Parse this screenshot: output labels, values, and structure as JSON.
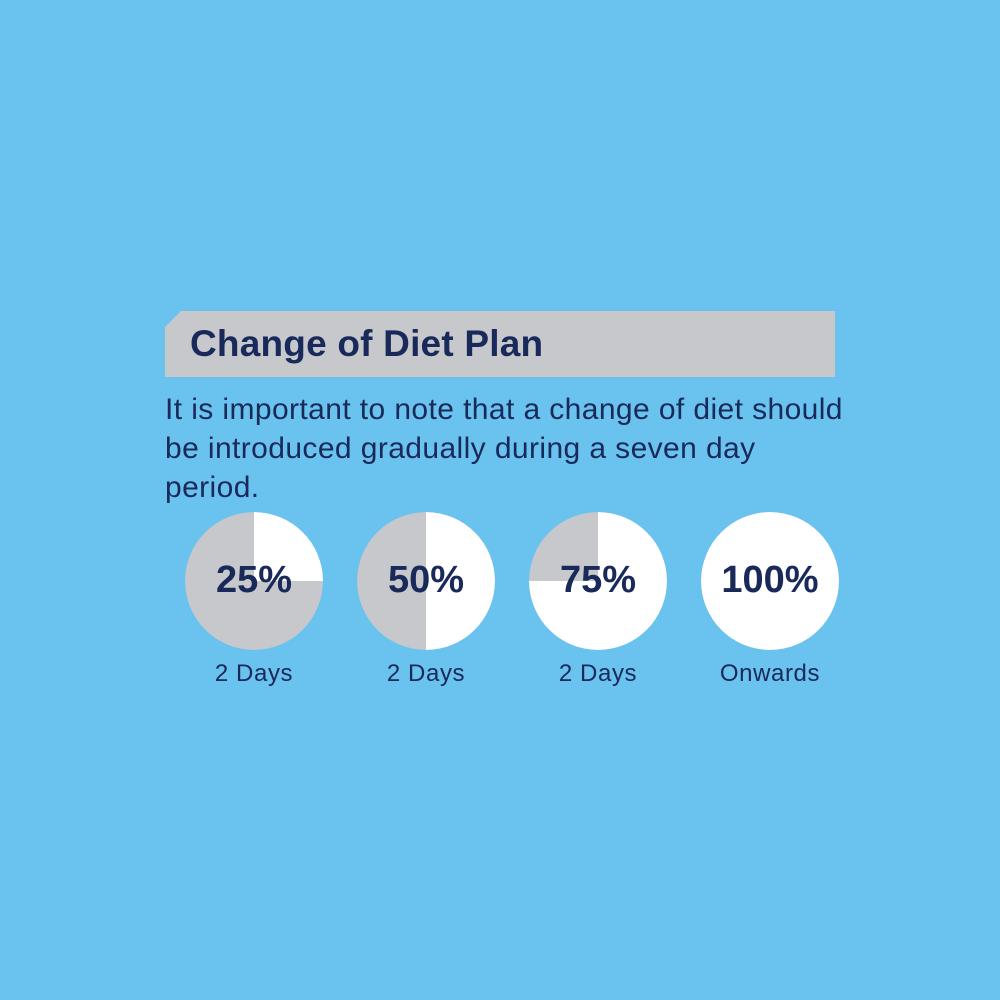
{
  "title": "Change of Diet Plan",
  "intro": "It is important to note that a change of diet should be introduced gradually during a seven day period.",
  "colors": {
    "background": "#6ac2ee",
    "banner": "#c6c8cb",
    "text": "#18295a",
    "pie_filled": "#ffffff",
    "pie_empty": "#c6c8cb"
  },
  "steps": [
    {
      "percent_label": "25%",
      "fraction": 0.25,
      "duration": "2 Days"
    },
    {
      "percent_label": "50%",
      "fraction": 0.5,
      "duration": "2 Days"
    },
    {
      "percent_label": "75%",
      "fraction": 0.75,
      "duration": "2 Days"
    },
    {
      "percent_label": "100%",
      "fraction": 1.0,
      "duration": "Onwards"
    }
  ]
}
